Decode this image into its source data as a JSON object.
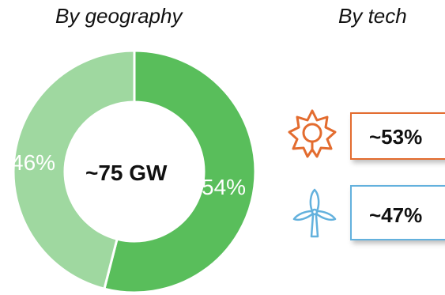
{
  "headings": {
    "geography": "By geography",
    "tech": "By tech"
  },
  "chart_data": [
    {
      "type": "pie",
      "title": "By geography",
      "center_label": "~75 GW",
      "slices": [
        {
          "label": "54%",
          "value": 54,
          "color": "#59be5b"
        },
        {
          "label": "46%",
          "value": 46,
          "color": "#9fd8a0"
        }
      ]
    }
  ],
  "tech": {
    "items": [
      {
        "icon": "sun-icon",
        "value": "~53%",
        "color": "#e36c2f"
      },
      {
        "icon": "wind-turbine-icon",
        "value": "~47%",
        "color": "#63b1dd"
      }
    ]
  }
}
